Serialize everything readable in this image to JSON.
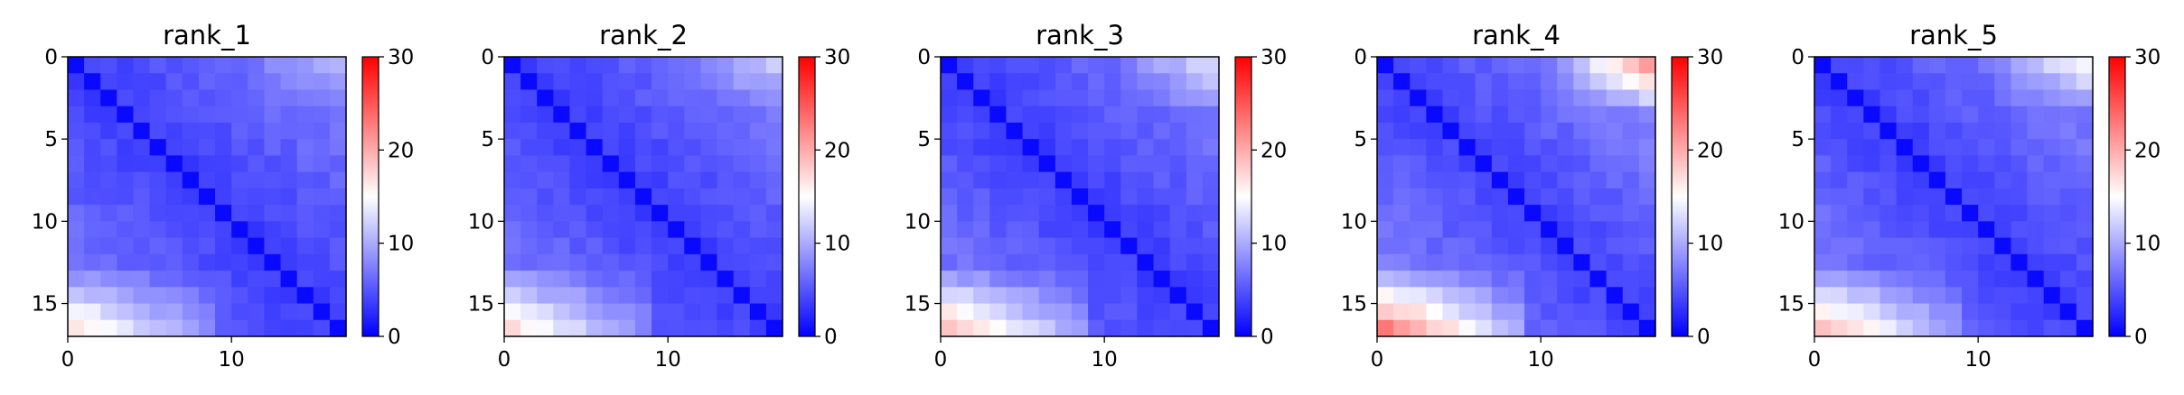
{
  "chart_data": [
    {
      "type": "heatmap",
      "title": "rank_1",
      "n": 17,
      "cmap": "bwr",
      "vmin": 0,
      "vmax": 30,
      "xlim": [
        0,
        17
      ],
      "ylim": [
        17,
        0
      ],
      "xticks": [
        0,
        10
      ],
      "yticks": [
        0,
        5,
        10,
        15
      ],
      "colorbar_ticks": [
        0,
        10,
        20,
        30
      ],
      "params": {
        "base": 3.5,
        "slope": 0.45,
        "bottom_boost": 9,
        "top_right_boost": 3
      }
    },
    {
      "type": "heatmap",
      "title": "rank_2",
      "n": 17,
      "cmap": "bwr",
      "vmin": 0,
      "vmax": 30,
      "xlim": [
        0,
        17
      ],
      "ylim": [
        17,
        0
      ],
      "xticks": [
        0,
        10
      ],
      "yticks": [
        0,
        5,
        10,
        15
      ],
      "colorbar_ticks": [
        0,
        10,
        20,
        30
      ],
      "params": {
        "base": 3.5,
        "slope": 0.45,
        "bottom_boost": 9,
        "top_right_boost": 4
      }
    },
    {
      "type": "heatmap",
      "title": "rank_3",
      "n": 17,
      "cmap": "bwr",
      "vmin": 0,
      "vmax": 30,
      "xlim": [
        0,
        17
      ],
      "ylim": [
        17,
        0
      ],
      "xticks": [
        0,
        10
      ],
      "yticks": [
        0,
        5,
        10,
        15
      ],
      "colorbar_ticks": [
        0,
        10,
        20,
        30
      ],
      "params": {
        "base": 3.5,
        "slope": 0.45,
        "bottom_boost": 11,
        "top_right_boost": 5
      }
    },
    {
      "type": "heatmap",
      "title": "rank_4",
      "n": 17,
      "cmap": "bwr",
      "vmin": 0,
      "vmax": 30,
      "xlim": [
        0,
        17
      ],
      "ylim": [
        17,
        0
      ],
      "xticks": [
        0,
        10
      ],
      "yticks": [
        0,
        5,
        10,
        15
      ],
      "colorbar_ticks": [
        0,
        10,
        20,
        30
      ],
      "params": {
        "base": 3.8,
        "slope": 0.5,
        "bottom_boost": 14,
        "top_right_boost": 12
      }
    },
    {
      "type": "heatmap",
      "title": "rank_5",
      "n": 17,
      "cmap": "bwr",
      "vmin": 0,
      "vmax": 30,
      "xlim": [
        0,
        17
      ],
      "ylim": [
        17,
        0
      ],
      "xticks": [
        0,
        10
      ],
      "yticks": [
        0,
        5,
        10,
        15
      ],
      "colorbar_ticks": [
        0,
        10,
        20,
        30
      ],
      "params": {
        "base": 3.6,
        "slope": 0.47,
        "bottom_boost": 11,
        "top_right_boost": 7
      }
    }
  ]
}
